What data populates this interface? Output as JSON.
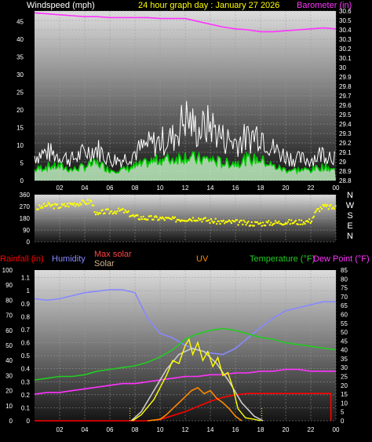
{
  "header": {
    "left_title": "Windspeed (mph)",
    "center_title": "24 hour graph day : January 27 2026",
    "right_title": "Barometer (in)"
  },
  "colors": {
    "barometer": "#ff33ff",
    "wind_avg": "#ffffff",
    "wind_gust": "#00cc00",
    "wind_dir": "#ffff00",
    "rain": "#ff0000",
    "humidity": "#8888ff",
    "max_solar": "#cccccc",
    "solar": "#ffff00",
    "uv": "#ff8800",
    "temperature": "#22cc22",
    "dew_point": "#ff33ff"
  },
  "chart_data": [
    {
      "type": "line",
      "name": "wind-barometer",
      "xlabel": "",
      "x_ticks": [
        "02",
        "04",
        "06",
        "08",
        "10",
        "12",
        "14",
        "16",
        "18",
        "20",
        "22",
        "00"
      ],
      "wind_ticks": [
        "45",
        "40",
        "35",
        "30",
        "25",
        "20",
        "15",
        "10",
        "5",
        "0"
      ],
      "wind_ylim": [
        0,
        48
      ],
      "baro_ticks": [
        "30.6",
        "30.5",
        "30.4",
        "30.3",
        "30.2",
        "30.1",
        "30",
        "29.9",
        "29.8",
        "29.7",
        "29.6",
        "29.5",
        "29.4",
        "29.3",
        "29.2",
        "29.1",
        "29",
        "28.9",
        "28.8"
      ],
      "baro_ylim": [
        28.8,
        30.6
      ],
      "series": [
        {
          "name": "Barometer (in)",
          "x": [
            0,
            1,
            2,
            3,
            4,
            5,
            6,
            7,
            8,
            9,
            10,
            11,
            12,
            13,
            14,
            15,
            16,
            17,
            18,
            19,
            20,
            21,
            22,
            23,
            24
          ],
          "values": [
            30.58,
            30.57,
            30.56,
            30.55,
            30.54,
            30.54,
            30.53,
            30.53,
            30.53,
            30.53,
            30.52,
            30.52,
            30.52,
            30.49,
            30.46,
            30.43,
            30.41,
            30.4,
            30.38,
            30.38,
            30.39,
            30.4,
            30.41,
            30.42,
            30.41
          ]
        },
        {
          "name": "Windspeed (mph)",
          "x": [
            0,
            1,
            2,
            3,
            4,
            5,
            6,
            7,
            8,
            9,
            10,
            11,
            12,
            13,
            14,
            15,
            16,
            17,
            18,
            19,
            20,
            21,
            22,
            23,
            24
          ],
          "values": [
            3,
            4,
            4,
            3,
            4,
            5,
            3,
            3,
            4,
            5,
            6,
            6,
            7,
            6,
            6,
            5,
            5,
            6,
            6,
            4,
            3,
            3,
            3,
            4,
            3
          ]
        },
        {
          "name": "Wind gust",
          "x": [
            0,
            1,
            2,
            3,
            4,
            5,
            6,
            7,
            8,
            9,
            10,
            11,
            12,
            13,
            14,
            15,
            16,
            17,
            18,
            19,
            20,
            21,
            22,
            23,
            24
          ],
          "values": [
            7,
            8,
            7,
            6,
            8,
            9,
            6,
            6,
            8,
            10,
            11,
            12,
            18,
            14,
            16,
            12,
            11,
            12,
            14,
            9,
            7,
            6,
            6,
            8,
            7
          ]
        }
      ]
    },
    {
      "type": "scatter",
      "name": "wind-direction",
      "y_ticks": [
        "360",
        "270",
        "180",
        "90",
        "0"
      ],
      "dir_labels": [
        "N",
        "W",
        "S",
        "E",
        "N"
      ],
      "ylim": [
        0,
        360
      ],
      "series": [
        {
          "name": "Wind direction",
          "x": [
            0,
            1,
            2,
            3,
            4,
            4.5,
            5,
            5.5,
            6,
            7,
            8,
            9,
            10,
            11,
            12,
            13,
            14,
            15,
            16,
            17,
            18,
            19,
            20,
            21,
            22,
            22.5,
            23,
            24
          ],
          "values": [
            250,
            280,
            270,
            290,
            300,
            310,
            200,
            230,
            230,
            240,
            190,
            180,
            180,
            170,
            175,
            180,
            160,
            150,
            150,
            140,
            140,
            145,
            150,
            150,
            160,
            240,
            270,
            260
          ]
        }
      ]
    },
    {
      "type": "line",
      "name": "humidity-temperature-solar",
      "x_ticks": [
        "02",
        "04",
        "06",
        "08",
        "10",
        "12",
        "14",
        "16",
        "18",
        "20",
        "22",
        "00"
      ],
      "left_ticks": [
        "100",
        "90",
        "80",
        "70",
        "60",
        "50",
        "40",
        "30",
        "20",
        "10",
        "0"
      ],
      "rain_ticks": [
        "1.1",
        "1",
        "0.9",
        "0.8",
        "0.7",
        "0.6",
        "0.5",
        "0.4",
        "0.3",
        "0.2",
        "0.1",
        "0"
      ],
      "right_ticks": [
        "85",
        "80",
        "75",
        "70",
        "65",
        "60",
        "55",
        "50",
        "45",
        "40",
        "35",
        "30",
        "25",
        "20",
        "15",
        "10",
        "5",
        "0"
      ],
      "legend": [
        "Rainfall (in)",
        "Humidity",
        "Max solar",
        "Solar",
        "UV",
        "Temperature (°F)",
        "Dew Point (°F)"
      ],
      "series": [
        {
          "name": "Humidity",
          "axis": "left",
          "x": [
            0,
            1,
            2,
            3,
            4,
            5,
            6,
            7,
            8,
            9,
            10,
            11,
            12,
            13,
            14,
            15,
            16,
            17,
            18,
            19,
            20,
            21,
            22,
            23,
            24
          ],
          "values": [
            81,
            80,
            81,
            83,
            85,
            86,
            87,
            87,
            85,
            68,
            58,
            55,
            50,
            47,
            45,
            44,
            48,
            55,
            62,
            68,
            73,
            75,
            77,
            79,
            79
          ]
        },
        {
          "name": "Temperature (°F)",
          "axis": "right",
          "x": [
            0,
            1,
            2,
            3,
            4,
            5,
            6,
            7,
            8,
            9,
            10,
            11,
            12,
            13,
            14,
            15,
            16,
            17,
            18,
            19,
            20,
            21,
            22,
            23,
            24
          ],
          "values": [
            23,
            24,
            25,
            25,
            26,
            28,
            29,
            30,
            31,
            33,
            36,
            40,
            46,
            49,
            51,
            52,
            51,
            49,
            47,
            46,
            44,
            43,
            42,
            41,
            40
          ]
        },
        {
          "name": "Dew Point (°F)",
          "axis": "right",
          "x": [
            0,
            1,
            2,
            3,
            4,
            5,
            6,
            7,
            8,
            9,
            10,
            11,
            12,
            13,
            14,
            15,
            16,
            17,
            18,
            19,
            20,
            21,
            22,
            23,
            24
          ],
          "values": [
            15,
            16,
            16,
            17,
            18,
            19,
            20,
            21,
            21,
            22,
            23,
            24,
            25,
            25,
            26,
            26,
            27,
            27,
            28,
            28,
            29,
            29,
            28,
            28,
            28
          ]
        },
        {
          "name": "Rainfall (in)",
          "axis": "rain",
          "x": [
            0,
            8,
            9,
            10,
            11,
            12,
            13,
            14,
            15,
            16,
            17,
            18,
            19,
            20,
            21,
            22,
            23,
            23.6
          ],
          "values": [
            0,
            0,
            0,
            0.01,
            0.04,
            0.07,
            0.11,
            0.15,
            0.18,
            0.2,
            0.21,
            0.21,
            0.21,
            0.21,
            0.21,
            0.21,
            0.21,
            0.21
          ]
        },
        {
          "name": "Max solar",
          "axis": "left",
          "x": [
            7.7,
            8.5,
            9.5,
            10.5,
            11.5,
            12.5,
            13.5,
            14.5,
            15.5,
            16.5,
            17.5,
            18.2
          ],
          "values": [
            0,
            6,
            20,
            34,
            44,
            48,
            46,
            38,
            26,
            12,
            3,
            0
          ]
        },
        {
          "name": "Solar",
          "axis": "left",
          "x": [
            7.8,
            8.5,
            9.5,
            10.5,
            11,
            11.5,
            12,
            12.3,
            12.6,
            13,
            13.4,
            13.8,
            14.2,
            14.6,
            15,
            15.4,
            15.8,
            16.2,
            16.8,
            17.5,
            18
          ],
          "values": [
            0,
            4,
            14,
            30,
            40,
            38,
            50,
            54,
            44,
            52,
            40,
            46,
            36,
            42,
            30,
            32,
            22,
            8,
            2,
            1,
            0
          ]
        },
        {
          "name": "UV",
          "axis": "left",
          "x": [
            9,
            10,
            10.5,
            11,
            11.5,
            12,
            12.5,
            13,
            13.5,
            14,
            14.5,
            15,
            15.5,
            16,
            16.5
          ],
          "values": [
            0,
            1,
            4,
            8,
            12,
            16,
            20,
            22,
            18,
            20,
            15,
            12,
            8,
            3,
            0
          ]
        }
      ]
    }
  ]
}
